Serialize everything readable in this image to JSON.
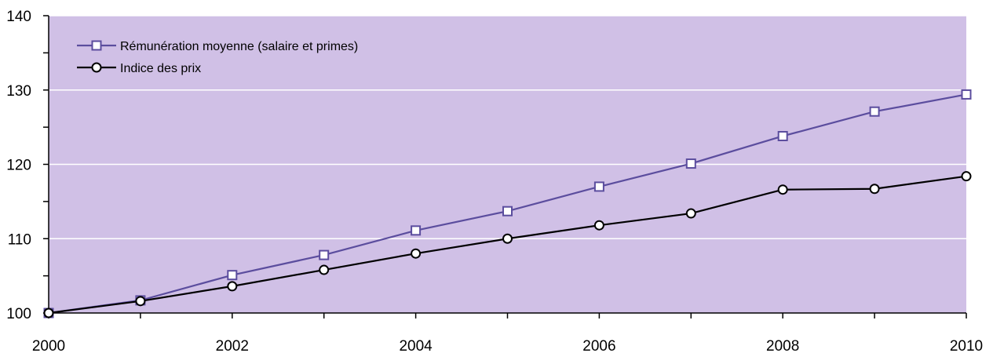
{
  "chart_data": {
    "type": "line",
    "title": "",
    "xlabel": "",
    "ylabel": "",
    "x": [
      2000,
      2001,
      2002,
      2003,
      2004,
      2005,
      2006,
      2007,
      2008,
      2009,
      2010
    ],
    "xlim": [
      2000,
      2010
    ],
    "ylim": [
      100,
      140
    ],
    "x_ticks": [
      "2000",
      "2002",
      "2004",
      "2006",
      "2008",
      "2010"
    ],
    "y_ticks": [
      "100",
      "110",
      "120",
      "130",
      "140"
    ],
    "grid": "horizontal",
    "legend_position": "top-left",
    "plot_background": "#d0c0e6",
    "series": [
      {
        "name": "Rémunération moyenne (salaire et primes)",
        "color": "#5b4d9e",
        "marker": "square",
        "values": [
          100,
          101.7,
          105.1,
          107.8,
          111.1,
          113.7,
          117.0,
          120.1,
          123.8,
          127.1,
          129.4
        ]
      },
      {
        "name": "Indice des prix",
        "color": "#000000",
        "marker": "circle",
        "values": [
          100,
          101.6,
          103.6,
          105.8,
          108.0,
          110.0,
          111.8,
          113.4,
          116.6,
          116.7,
          118.4
        ]
      }
    ]
  }
}
